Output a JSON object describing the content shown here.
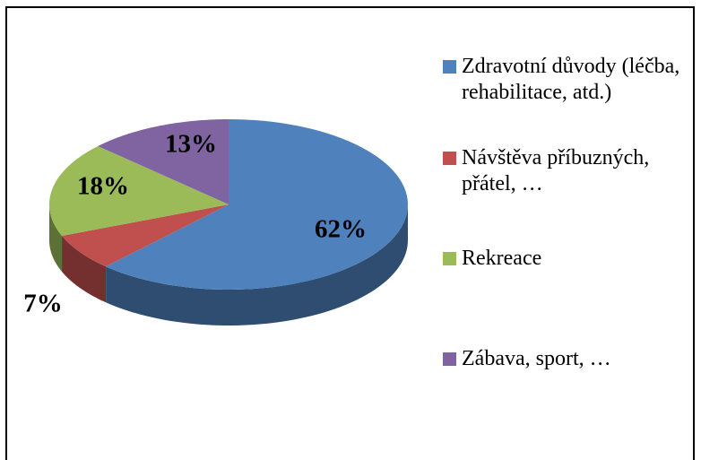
{
  "chart_data": {
    "type": "pie3d",
    "categories": [
      "Zdravotní důvody (léčba, rehabilitace, atd.)",
      "Návštěva příbuzných, přátel, …",
      "Rekreace",
      "Zábava, sport, …"
    ],
    "values": [
      62,
      7,
      18,
      13
    ],
    "value_labels": [
      "62%",
      "7%",
      "18%",
      "13%"
    ],
    "colors": [
      "#4f81bd",
      "#c0504d",
      "#9bbb59",
      "#8064a2"
    ],
    "legend": "right"
  }
}
